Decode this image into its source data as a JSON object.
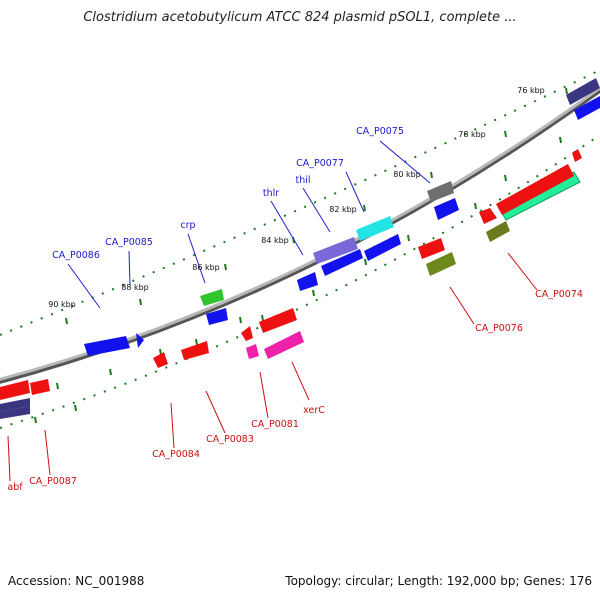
{
  "title": "Clostridium acetobutylicum ATCC 824 plasmid pSOL1, complete ...",
  "footer": {
    "accession": "Accession: NC_001988",
    "stats": "Topology: circular; Length: 192,000 bp; Genes: 176"
  },
  "colors": {
    "backbone": "#8a8a8a",
    "tick": "#1f7a1f",
    "label_forward": "#1a1acc",
    "label_reverse": "#cc1111",
    "leader": "#cc1111",
    "leader_forward": "#2222cc"
  },
  "ticks": [
    {
      "label": "76 kbp"
    },
    {
      "label": "78 kbp"
    },
    {
      "label": "80 kbp"
    },
    {
      "label": "82 kbp"
    },
    {
      "label": "84 kbp"
    },
    {
      "label": "86 kbp"
    },
    {
      "label": "88 kbp"
    },
    {
      "label": "90 kbp"
    }
  ],
  "forward_genes": [
    {
      "label": "CA_P0075",
      "color": "#6e6e6e"
    },
    {
      "label": "CA_P0077",
      "color": "#22e4e4"
    },
    {
      "label": "thil",
      "color": "#7b68d8"
    },
    {
      "label": "thlr",
      "color": "#1212ee"
    },
    {
      "label": "crp",
      "color": "#2ec42e"
    },
    {
      "label": "CA_P0085",
      "color": "#1212ee"
    },
    {
      "label": "CA_P0086",
      "color": "#1212ee"
    }
  ],
  "reverse_genes": [
    {
      "label": "CA_P0074",
      "color": "#ee1111"
    },
    {
      "label": "CA_P0076",
      "color": "#ee1111"
    },
    {
      "label": "xerC",
      "color": "#ee22aa"
    },
    {
      "label": "CA_P0081",
      "color": "#ee22aa"
    },
    {
      "label": "CA_P0083",
      "color": "#ee1111"
    },
    {
      "label": "CA_P0084",
      "color": "#ee1111"
    },
    {
      "label": "CA_P0087",
      "color": "#ee1111"
    },
    {
      "label": "abf",
      "color": "#ee1111"
    }
  ]
}
